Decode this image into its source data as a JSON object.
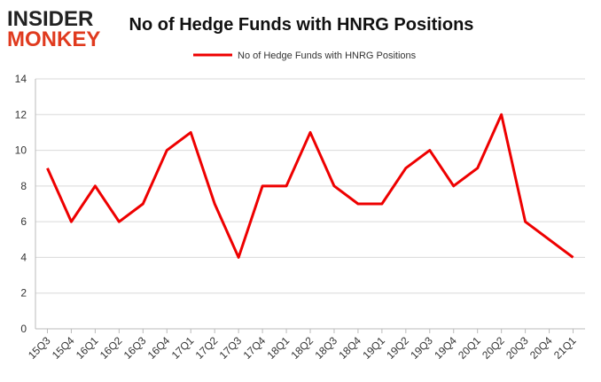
{
  "logo": [
    "INSIDER",
    "MONKEY"
  ],
  "chart_data": {
    "type": "line",
    "title": "No of Hedge Funds with HNRG Positions",
    "categories": [
      "15Q3",
      "15Q4",
      "16Q1",
      "16Q2",
      "16Q3",
      "16Q4",
      "17Q1",
      "17Q2",
      "17Q3",
      "17Q4",
      "18Q1",
      "18Q2",
      "18Q3",
      "18Q4",
      "19Q1",
      "19Q2",
      "19Q3",
      "19Q4",
      "20Q1",
      "20Q2",
      "20Q3",
      "20Q4",
      "21Q1"
    ],
    "series": [
      {
        "name": "No of Hedge Funds with HNRG Positions",
        "color": "#ee0000",
        "values": [
          9,
          6,
          8,
          6,
          7,
          10,
          11,
          7,
          4,
          8,
          8,
          11,
          8,
          7,
          7,
          9,
          10,
          8,
          9,
          12,
          6,
          5,
          4
        ]
      }
    ],
    "ylim": [
      0,
      14
    ],
    "yticks": [
      0,
      2,
      4,
      6,
      8,
      10,
      12,
      14
    ],
    "grid": true,
    "legend": "top"
  }
}
